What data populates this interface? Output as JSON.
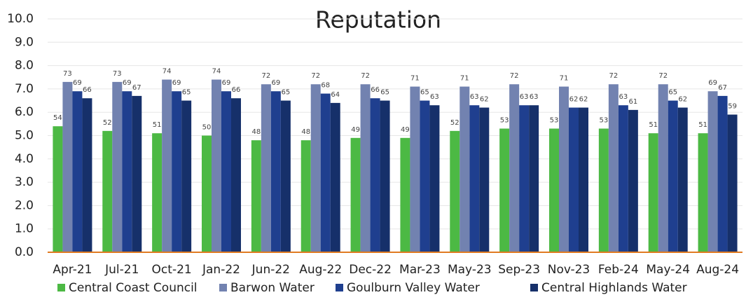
{
  "chart_data": {
    "type": "bar",
    "title": "Reputation",
    "categories": [
      "Apr-21",
      "Jul-21",
      "Oct-21",
      "Jan-22",
      "Jun-22",
      "Aug-22",
      "Dec-22",
      "Mar-23",
      "May-23",
      "Sep-23",
      "Nov-23",
      "Feb-24",
      "May-24",
      "Aug-24"
    ],
    "series": [
      {
        "name": "Central Coast Council",
        "color": "#4cb944",
        "values": [
          5.4,
          5.2,
          5.1,
          5.0,
          4.8,
          4.8,
          4.9,
          4.9,
          5.2,
          5.3,
          5.3,
          5.3,
          5.1,
          5.1
        ],
        "value_labels": [
          "54",
          "52",
          "51",
          "50",
          "48",
          "48",
          "49",
          "49",
          "52",
          "53",
          "53",
          "53",
          "51",
          "51"
        ]
      },
      {
        "name": "Barwon Water",
        "color": "#7282b0",
        "values": [
          7.3,
          7.3,
          7.4,
          7.4,
          7.2,
          7.2,
          7.2,
          7.1,
          7.1,
          7.2,
          7.1,
          7.2,
          7.2,
          6.9
        ],
        "value_labels": [
          "73",
          "73",
          "74",
          "74",
          "72",
          "72",
          "72",
          "71",
          "71",
          "72",
          "71",
          "72",
          "72",
          "69"
        ]
      },
      {
        "name": "Goulburn Valley Water",
        "color": "#1f3f8f",
        "values": [
          6.9,
          6.9,
          6.9,
          6.9,
          6.9,
          6.8,
          6.6,
          6.5,
          6.3,
          6.3,
          6.2,
          6.3,
          6.5,
          6.7
        ],
        "value_labels": [
          "69",
          "69",
          "69",
          "69",
          "69",
          "68",
          "66",
          "65",
          "63",
          "63",
          "62",
          "63",
          "65",
          "67"
        ]
      },
      {
        "name": "Central Highlands Water",
        "color": "#16306a",
        "values": [
          6.6,
          6.7,
          6.5,
          6.6,
          6.5,
          6.4,
          6.5,
          6.3,
          6.2,
          6.3,
          6.2,
          6.1,
          6.2,
          5.9
        ],
        "value_labels": [
          "66",
          "67",
          "65",
          "66",
          "65",
          "64",
          "65",
          "63",
          "62",
          "63",
          "62",
          "61",
          "62",
          "59"
        ]
      }
    ],
    "ylim": [
      0,
      10
    ],
    "yticks": [
      {
        "value": 0,
        "label": "0.0"
      },
      {
        "value": 1,
        "label": "1.0"
      },
      {
        "value": 2,
        "label": "2.0"
      },
      {
        "value": 3,
        "label": "3.0"
      },
      {
        "value": 4,
        "label": "4.0"
      },
      {
        "value": 5,
        "label": "5.0"
      },
      {
        "value": 6,
        "label": "6.0"
      },
      {
        "value": 7,
        "label": "7.0"
      },
      {
        "value": 8,
        "label": "8.0"
      },
      {
        "value": 9,
        "label": "9.0"
      },
      {
        "value": 10,
        "label": "10.0"
      }
    ],
    "grid": true,
    "legend": "bottom"
  }
}
